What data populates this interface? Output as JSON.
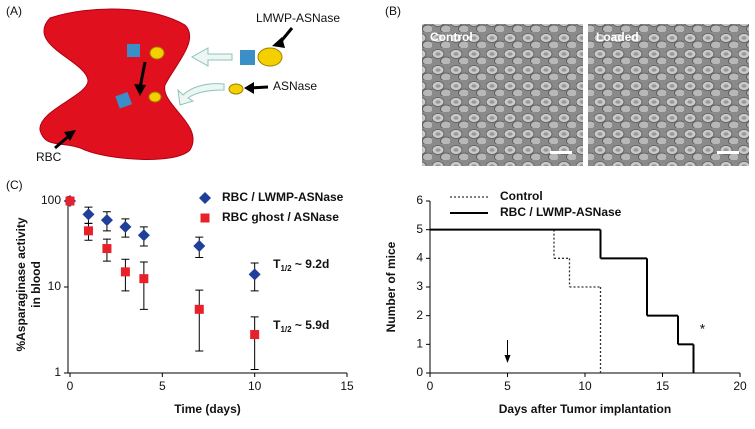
{
  "panel_a": {
    "label": "(A)",
    "lmwp": "LMWP-ASNase",
    "asnase": "ASNase",
    "rbc": "RBC"
  },
  "panel_b": {
    "label": "(B)",
    "control": "Control",
    "loaded": "Loaded"
  },
  "chart_data": [
    {
      "type": "scatter",
      "panel_label": "(C)",
      "x_label": "Time (days)",
      "y_label": [
        "%Asparaginase activity",
        "in blood"
      ],
      "xlim": [
        0,
        15
      ],
      "xticks": [
        0,
        5,
        10,
        15
      ],
      "ylim": [
        1,
        100
      ],
      "yticks": [
        1,
        10,
        100
      ],
      "log_y": true,
      "series": [
        {
          "name": "RBC / LWMP-ASNase",
          "color": "#1f3f99",
          "marker": "diamond",
          "x": [
            0,
            1,
            2,
            3,
            4,
            7,
            10
          ],
          "values": [
            100,
            70,
            60,
            50,
            40,
            30,
            14
          ],
          "errors": [
            8,
            15,
            15,
            12,
            10,
            8,
            5
          ]
        },
        {
          "name": "RBC ghost / ASNase",
          "color": "#e8202a",
          "marker": "square",
          "x": [
            0,
            1,
            2,
            3,
            4,
            7,
            10
          ],
          "values": [
            100,
            45,
            28,
            15,
            12.5,
            5.5,
            2.8
          ],
          "errors": [
            8,
            10,
            8,
            6,
            7,
            3.7,
            1.7
          ]
        }
      ],
      "annotations": [
        {
          "base": "T",
          "sub": "1/2",
          "rest": " ~ 9.2d",
          "x": 11,
          "y": 18
        },
        {
          "base": "T",
          "sub": "1/2",
          "rest": " ~ 5.9d",
          "x": 11,
          "y": 3.5
        }
      ]
    },
    {
      "type": "line",
      "drawstyle": "steps-post",
      "x_label": "Days after Tumor implantation",
      "y_label": "Number of mice",
      "xlim": [
        0,
        20
      ],
      "xticks": [
        0,
        5,
        10,
        15,
        20
      ],
      "ylim": [
        0,
        6
      ],
      "yticks": [
        0,
        1,
        2,
        3,
        4,
        5,
        6
      ],
      "series": [
        {
          "name": "Control",
          "color": "#333333",
          "dash": true,
          "x": [
            0,
            8,
            9,
            11
          ],
          "values": [
            5,
            4,
            3,
            0
          ]
        },
        {
          "name": "RBC / LWMP-ASNase",
          "color": "#000000",
          "dash": false,
          "x": [
            0,
            11,
            14,
            16,
            17
          ],
          "values": [
            5,
            4,
            2,
            1,
            0
          ]
        }
      ],
      "annotations": [
        {
          "text": "*",
          "x": 17.4,
          "y": 1.5
        }
      ],
      "arrow_x": 5
    }
  ]
}
